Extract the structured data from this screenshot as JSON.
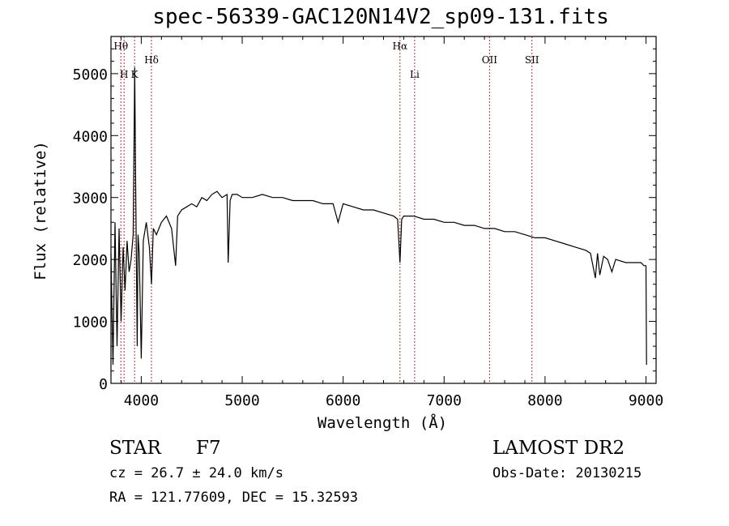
{
  "chart_data": {
    "type": "line",
    "title": "spec-56339-GAC120N14V2_sp09-131.fits",
    "xlabel": "Wavelength (Å)",
    "ylabel": "Flux (relative)",
    "xlim": [
      3700,
      9100
    ],
    "ylim": [
      0,
      5600
    ],
    "xticks": [
      4000,
      5000,
      6000,
      7000,
      8000,
      9000
    ],
    "yticks": [
      0,
      1000,
      2000,
      3000,
      4000,
      5000
    ],
    "xtick_labels": [
      "4000",
      "5000",
      "6000",
      "7000",
      "8000",
      "9000"
    ],
    "ytick_labels": [
      "0",
      "1000",
      "2000",
      "3000",
      "4000",
      "5000"
    ],
    "line_color": "#000000",
    "marker_color": "#b03030",
    "series": [
      {
        "x": [
          3700,
          3720,
          3740,
          3760,
          3780,
          3800,
          3820,
          3840,
          3860,
          3880,
          3900,
          3920,
          3930,
          3935,
          3945,
          3960,
          3968,
          3980,
          4000,
          4020,
          4050,
          4080,
          4101,
          4120,
          4150,
          4200,
          4250,
          4300,
          4340,
          4360,
          4400,
          4450,
          4500,
          4550,
          4600,
          4650,
          4700,
          4750,
          4800,
          4850,
          4861,
          4880,
          4900,
          4950,
          5000,
          5100,
          5200,
          5300,
          5400,
          5500,
          5600,
          5700,
          5800,
          5900,
          5950,
          6000,
          6100,
          6200,
          6300,
          6400,
          6500,
          6540,
          6563,
          6580,
          6600,
          6700,
          6800,
          6900,
          7000,
          7100,
          7200,
          7300,
          7400,
          7500,
          7600,
          7700,
          7800,
          7900,
          8000,
          8100,
          8200,
          8300,
          8400,
          8450,
          8498,
          8520,
          8542,
          8580,
          8620,
          8662,
          8700,
          8800,
          8900,
          8950,
          8980,
          9000,
          9005
        ],
        "y": [
          2100,
          300,
          2600,
          600,
          2500,
          1000,
          2200,
          1500,
          2300,
          1800,
          2000,
          2400,
          4200,
          5100,
          3200,
          600,
          2400,
          2100,
          400,
          2300,
          2600,
          2200,
          1600,
          2500,
          2400,
          2600,
          2700,
          2500,
          1900,
          2700,
          2800,
          2850,
          2900,
          2850,
          3000,
          2950,
          3050,
          3100,
          3000,
          3050,
          1950,
          2950,
          3050,
          3050,
          3000,
          3000,
          3050,
          3000,
          3000,
          2950,
          2950,
          2950,
          2900,
          2900,
          2600,
          2900,
          2850,
          2800,
          2800,
          2750,
          2700,
          2650,
          1950,
          2650,
          2700,
          2700,
          2650,
          2650,
          2600,
          2600,
          2550,
          2550,
          2500,
          2500,
          2450,
          2450,
          2400,
          2350,
          2350,
          2300,
          2250,
          2200,
          2150,
          2100,
          1700,
          2100,
          1750,
          2050,
          2000,
          1800,
          2000,
          1950,
          1950,
          1950,
          1900,
          1900,
          300
        ]
      }
    ],
    "line_markers": [
      {
        "label": "Hθ",
        "x": 3798,
        "row": 1
      },
      {
        "label": "H",
        "x": 3830,
        "row": 3
      },
      {
        "label": "K",
        "x": 3934,
        "row": 3
      },
      {
        "label": "Hδ",
        "x": 4101,
        "row": 2
      },
      {
        "label": "Hα",
        "x": 6563,
        "row": 1
      },
      {
        "label": "Li",
        "x": 6708,
        "row": 3
      },
      {
        "label": "OII",
        "x": 7450,
        "row": 2
      },
      {
        "label": "SII",
        "x": 7870,
        "row": 2
      }
    ]
  },
  "info": {
    "object_type": "STAR",
    "subclass": "F7",
    "survey": "LAMOST DR2",
    "cz": "cz = 26.7 ± 24.0 km/s",
    "obs_date": "Obs-Date: 20130215",
    "coords": "RA = 121.77609, DEC =  15.32593"
  }
}
